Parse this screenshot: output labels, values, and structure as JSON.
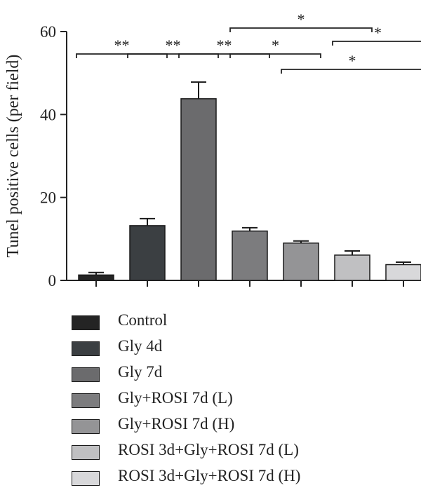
{
  "chart_data": {
    "type": "bar",
    "ylabel": "Tunel positive cells (per field)",
    "ylim": [
      0,
      60
    ],
    "yticks": [
      0,
      20,
      40,
      60
    ],
    "categories": [
      "Control",
      "Gly 4d",
      "Gly 7d",
      "Gly+ROSI 7d (L)",
      "Gly+ROSI 7d (H)",
      "ROSI 3d+Gly+ROSI 7d (L)",
      "ROSI 3d+Gly+ROSI 7d (H)"
    ],
    "values": [
      1.3,
      13.2,
      43.8,
      11.9,
      9.0,
      6.1,
      3.8
    ],
    "errors": [
      0.6,
      1.7,
      4.0,
      0.8,
      0.5,
      1.0,
      0.6
    ],
    "colors": [
      "#242424",
      "#3b3f42",
      "#6b6b6d",
      "#7c7c7e",
      "#949496",
      "#c0c0c2",
      "#d8d8da"
    ],
    "significance": [
      {
        "from": 0,
        "to": 1,
        "label": "**"
      },
      {
        "from": 1,
        "to": 2,
        "label": "**"
      },
      {
        "from": 2,
        "to": 3,
        "label": "**"
      },
      {
        "from": 3,
        "to": 4,
        "label": "*"
      },
      {
        "from": 3,
        "to": 5,
        "label": "*"
      },
      {
        "from": 5,
        "to": 6,
        "label": "*"
      },
      {
        "from": 4,
        "to": 6,
        "label": "*"
      }
    ],
    "legend_position": "bottom"
  }
}
